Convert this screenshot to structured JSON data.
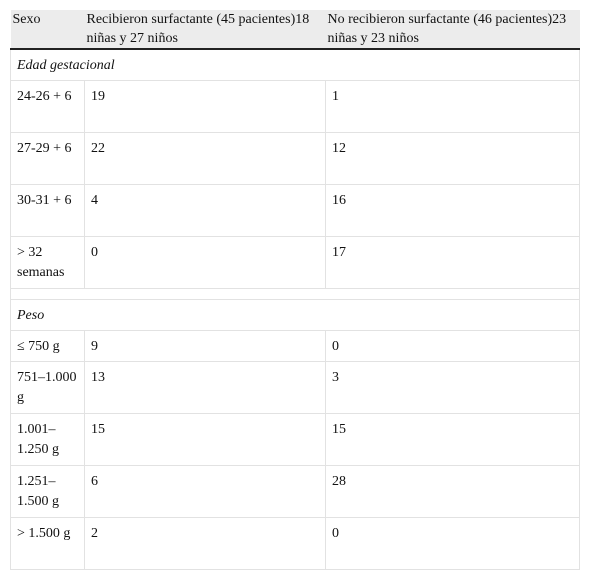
{
  "table": {
    "header": [
      "Sexo",
      "Recibieron surfactante (45 pacientes)18 niñas y 27 niños",
      "No recibieron surfactante (46 pacientes)23 niñas y 23 niños"
    ],
    "sections": [
      {
        "title": "Edad gestacional",
        "rows": [
          [
            "24-26 + 6",
            19,
            1
          ],
          [
            "27-29 + 6",
            22,
            12
          ],
          [
            "30-31 + 6",
            4,
            16
          ],
          [
            "> 32 semanas",
            0,
            17
          ]
        ]
      },
      {
        "title": "Peso",
        "rows": [
          [
            "≤ 750 g",
            9,
            0
          ],
          [
            "751–1.000 g",
            13,
            3
          ],
          [
            "1.001–1.250 g",
            15,
            15
          ],
          [
            "1.251–1.500 g",
            6,
            28
          ],
          [
            "> 1.500 g",
            2,
            0
          ]
        ]
      }
    ]
  }
}
